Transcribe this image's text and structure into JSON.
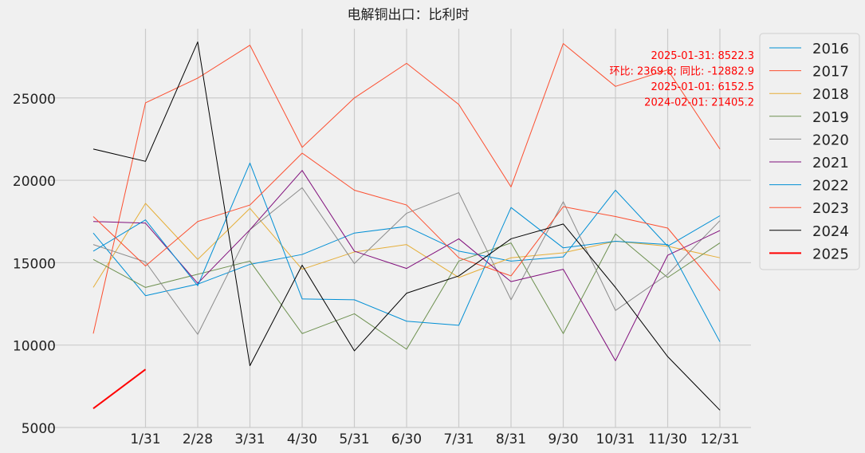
{
  "chart_data": {
    "type": "line",
    "title": "电解铜出口：比利时",
    "xlabel": "",
    "ylabel": "",
    "x_tick_labels": [
      "1/31",
      "2/28",
      "3/31",
      "4/30",
      "5/31",
      "6/30",
      "7/31",
      "8/31",
      "9/30",
      "10/31",
      "11/30",
      "12/31"
    ],
    "x_positions": [
      0,
      1,
      2,
      3,
      4,
      5,
      6,
      7,
      8,
      9,
      10,
      11,
      12
    ],
    "ylim": [
      5000,
      29200
    ],
    "y_ticks": [
      5000,
      10000,
      15000,
      20000,
      25000
    ],
    "grid": true,
    "legend_position": "upper-right-outside",
    "series": [
      {
        "name": "2016",
        "color": "#008fd5",
        "width": 1,
        "values": [
          16800,
          13000,
          13700,
          14900,
          15500,
          16800,
          17200,
          15700,
          15100,
          15350,
          19400,
          16000,
          17850
        ]
      },
      {
        "name": "2017",
        "color": "#fc4f30",
        "width": 1,
        "values": [
          10700,
          24700,
          26200,
          28200,
          22000,
          25000,
          27100,
          24600,
          19600,
          28300,
          25700,
          26700,
          21900
        ]
      },
      {
        "name": "2018",
        "color": "#e5ae38",
        "width": 1,
        "values": [
          13500,
          18600,
          15200,
          18300,
          14600,
          15650,
          16100,
          14100,
          15300,
          15600,
          16300,
          16000,
          15300
        ]
      },
      {
        "name": "2019",
        "color": "#6d904f",
        "width": 1,
        "values": [
          15200,
          13500,
          14300,
          15100,
          10700,
          11900,
          9750,
          15100,
          16200,
          10700,
          16750,
          14100,
          16200
        ]
      },
      {
        "name": "2020",
        "color": "#8b8b8b",
        "width": 1,
        "values": [
          16100,
          15050,
          10650,
          17000,
          19550,
          14950,
          18000,
          19250,
          12750,
          18700,
          12100,
          14300,
          17550
        ]
      },
      {
        "name": "2021",
        "color": "#810f7c",
        "width": 1,
        "values": [
          17500,
          17400,
          13750,
          17000,
          20600,
          15700,
          14650,
          16450,
          13850,
          14600,
          9050,
          15450,
          16950
        ]
      },
      {
        "name": "2022",
        "color": "#008fd5",
        "width": 1,
        "values": [
          15700,
          17600,
          13600,
          21050,
          12800,
          12750,
          11450,
          11200,
          18350,
          15900,
          16300,
          16100,
          10200
        ]
      },
      {
        "name": "2023",
        "color": "#fc4f30",
        "width": 1,
        "values": [
          17800,
          14800,
          17500,
          18500,
          21650,
          19400,
          18500,
          15300,
          14200,
          18400,
          17800,
          17100,
          13300
        ]
      },
      {
        "name": "2024",
        "color": "#000000",
        "width": 1,
        "values": [
          21900,
          21150,
          28400,
          8750,
          14850,
          9650,
          13150,
          14200,
          16450,
          17350,
          13500,
          9300,
          6050
        ]
      },
      {
        "name": "2025",
        "color": "#ff0000",
        "width": 2,
        "values": [
          6152.5,
          8522.3
        ]
      }
    ],
    "annotations": [
      "2025-01-31: 8522.3",
      "环比: 2369.8; 同比: -12882.9",
      "2025-01-01: 6152.5",
      "2024-02-01: 21405.2"
    ],
    "annotation_color": "#ff0000"
  }
}
